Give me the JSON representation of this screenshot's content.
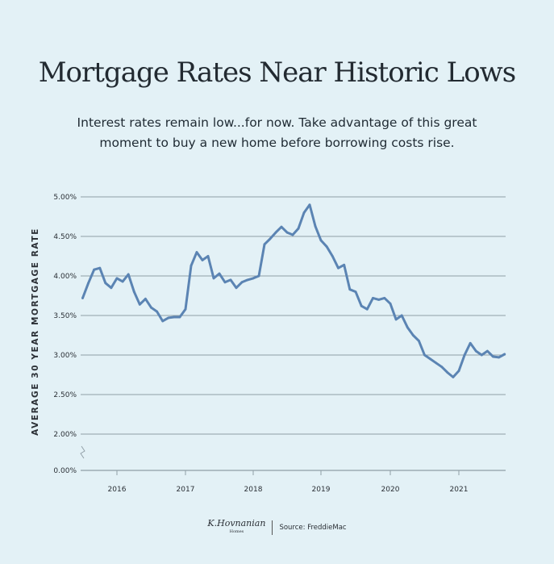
{
  "title": "Mortgage Rates Near Historic Lows",
  "subtitle_line1": "Interest rates remain low...for now. Take advantage of this great",
  "subtitle_line2": "moment to buy a new home before borrowing costs rise.",
  "footer": {
    "logo": "K.Hovnanian",
    "logo_sub": "Homes",
    "source": "Source: FreddieMac"
  },
  "colors": {
    "line": "#5b84b3",
    "grid": "#8f9ea6",
    "background": "#e3f1f6"
  },
  "chart_data": {
    "type": "line",
    "ylabel": "AVERAGE 30 YEAR MORTGAGE RATE",
    "y_ticks": [
      "5.00%",
      "4.50%",
      "4.00%",
      "3.50%",
      "3.00%",
      "2.50%",
      "2.00%",
      "0.00%"
    ],
    "y_axis_break": true,
    "x_ticks": [
      "2016",
      "2017",
      "2018",
      "2019",
      "2020",
      "2021"
    ],
    "grid": true,
    "series": [
      {
        "x": [
          "2015-07",
          "2015-08",
          "2015-09",
          "2015-10",
          "2015-11",
          "2015-12",
          "2016-01",
          "2016-02",
          "2016-03",
          "2016-04",
          "2016-05",
          "2016-06",
          "2016-07",
          "2016-08",
          "2016-09",
          "2016-10",
          "2016-11",
          "2016-12",
          "2017-01",
          "2017-02",
          "2017-03",
          "2017-04",
          "2017-05",
          "2017-06",
          "2017-07",
          "2017-08",
          "2017-09",
          "2017-10",
          "2017-11",
          "2017-12",
          "2018-01",
          "2018-02",
          "2018-03",
          "2018-04",
          "2018-05",
          "2018-06",
          "2018-07",
          "2018-08",
          "2018-09",
          "2018-10",
          "2018-11",
          "2018-12",
          "2019-01",
          "2019-02",
          "2019-03",
          "2019-04",
          "2019-05",
          "2019-06",
          "2019-07",
          "2019-08",
          "2019-09",
          "2019-10",
          "2019-11",
          "2019-12",
          "2020-01",
          "2020-02",
          "2020-03",
          "2020-04",
          "2020-05",
          "2020-06",
          "2020-07",
          "2020-08",
          "2020-09",
          "2020-10",
          "2020-11",
          "2020-12",
          "2021-01",
          "2021-02",
          "2021-03",
          "2021-04",
          "2021-05",
          "2021-06",
          "2021-07",
          "2021-08",
          "2021-09"
        ],
        "y": [
          3.72,
          3.91,
          4.08,
          4.1,
          3.91,
          3.85,
          3.97,
          3.93,
          4.02,
          3.8,
          3.64,
          3.71,
          3.6,
          3.55,
          3.43,
          3.47,
          3.48,
          3.48,
          3.58,
          4.13,
          4.3,
          4.2,
          4.25,
          3.97,
          4.03,
          3.92,
          3.95,
          3.85,
          3.92,
          3.95,
          3.97,
          4.0,
          4.4,
          4.47,
          4.55,
          4.62,
          4.55,
          4.52,
          4.6,
          4.8,
          4.9,
          4.63,
          4.45,
          4.37,
          4.25,
          4.1,
          4.14,
          3.83,
          3.8,
          3.62,
          3.58,
          3.72,
          3.7,
          3.72,
          3.65,
          3.45,
          3.5,
          3.35,
          3.25,
          3.18,
          3.0,
          2.95,
          2.9,
          2.85,
          2.78,
          2.72,
          2.8,
          3.0,
          3.15,
          3.05,
          3.0,
          3.05,
          2.98,
          2.97,
          3.01
        ]
      }
    ]
  }
}
